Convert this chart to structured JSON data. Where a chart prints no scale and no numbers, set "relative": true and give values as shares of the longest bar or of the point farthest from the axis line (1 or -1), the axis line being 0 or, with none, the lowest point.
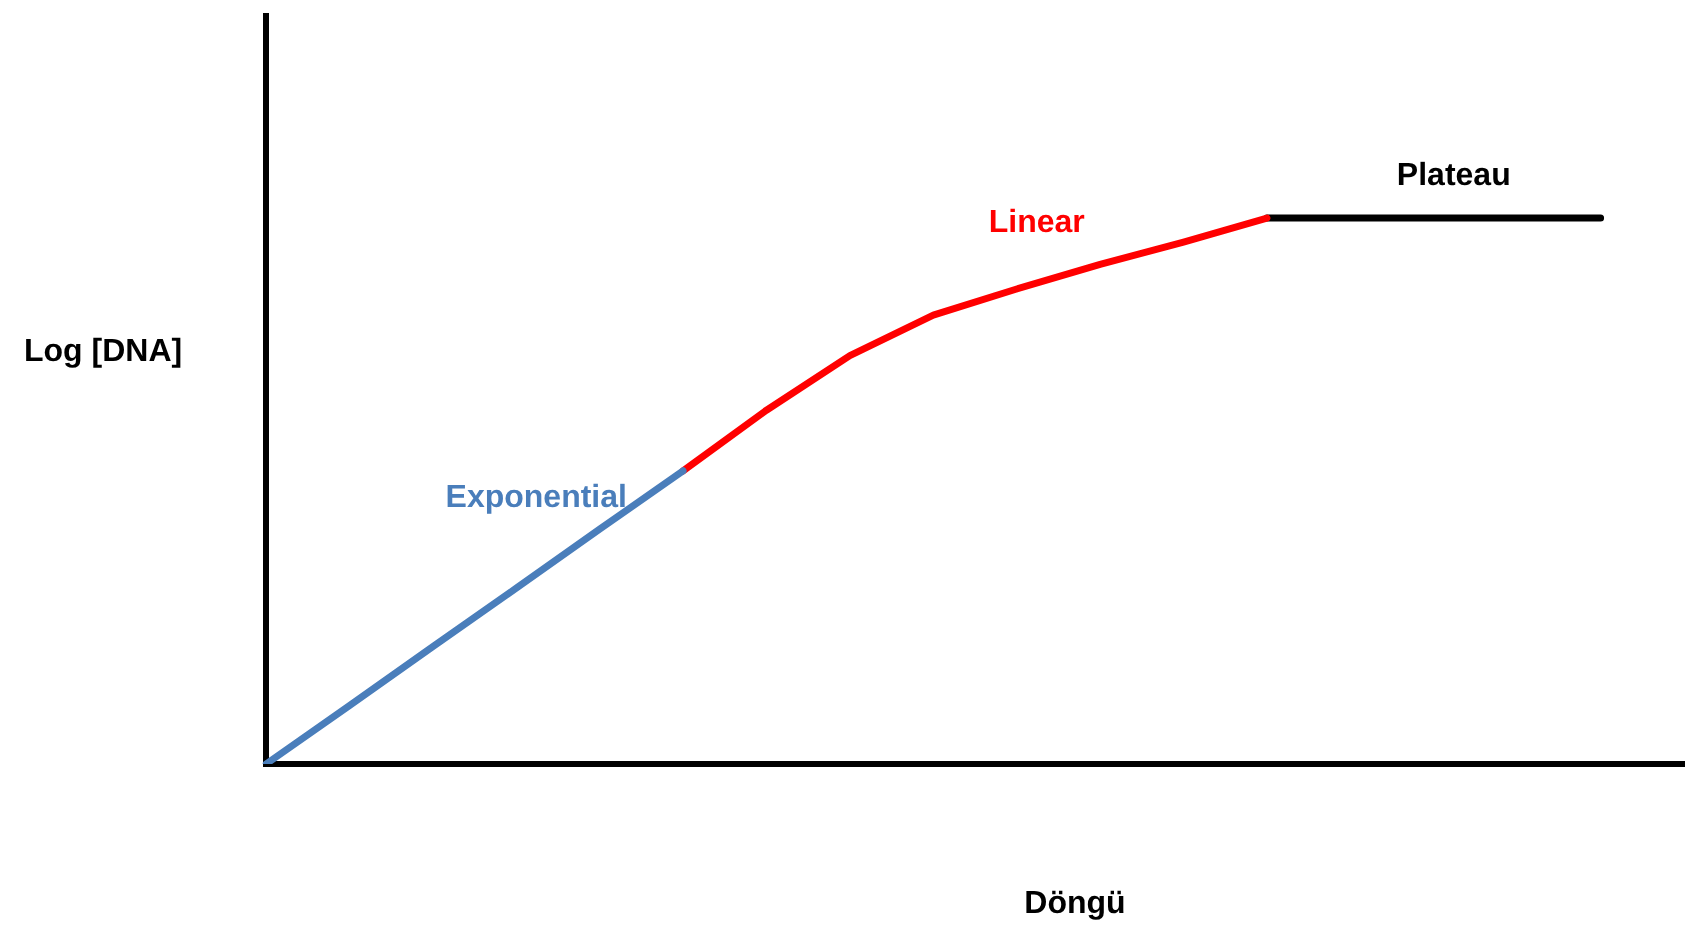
{
  "chart_data": {
    "type": "line",
    "relative": true,
    "xlabel": "Döngü",
    "ylabel": "Log [DNA]",
    "categories": [
      null,
      null,
      null,
      null,
      null,
      null,
      null,
      null,
      null,
      null,
      null,
      null,
      null,
      null,
      null,
      null,
      null,
      null
    ],
    "series": [
      {
        "name": "Exponential",
        "color": "#4a7ebb",
        "values": [
          0,
          0.107,
          0.215,
          0.322,
          0.43,
          0.537,
          null,
          null,
          null,
          null,
          null,
          null,
          null,
          null,
          null,
          null,
          null,
          null
        ]
      },
      {
        "name": "Linear",
        "color": "#ff0000",
        "values": [
          null,
          null,
          null,
          null,
          null,
          0.537,
          0.648,
          0.748,
          0.822,
          0.87,
          0.915,
          0.956,
          1,
          null,
          null,
          null,
          null,
          null
        ]
      },
      {
        "name": "Plateau",
        "color": "#000000",
        "values": [
          null,
          null,
          null,
          null,
          null,
          null,
          null,
          null,
          null,
          null,
          null,
          null,
          1,
          1,
          1,
          1,
          1,
          null
        ]
      }
    ],
    "grid": false,
    "legend": false,
    "marker": "none",
    "line_style": "solid"
  }
}
